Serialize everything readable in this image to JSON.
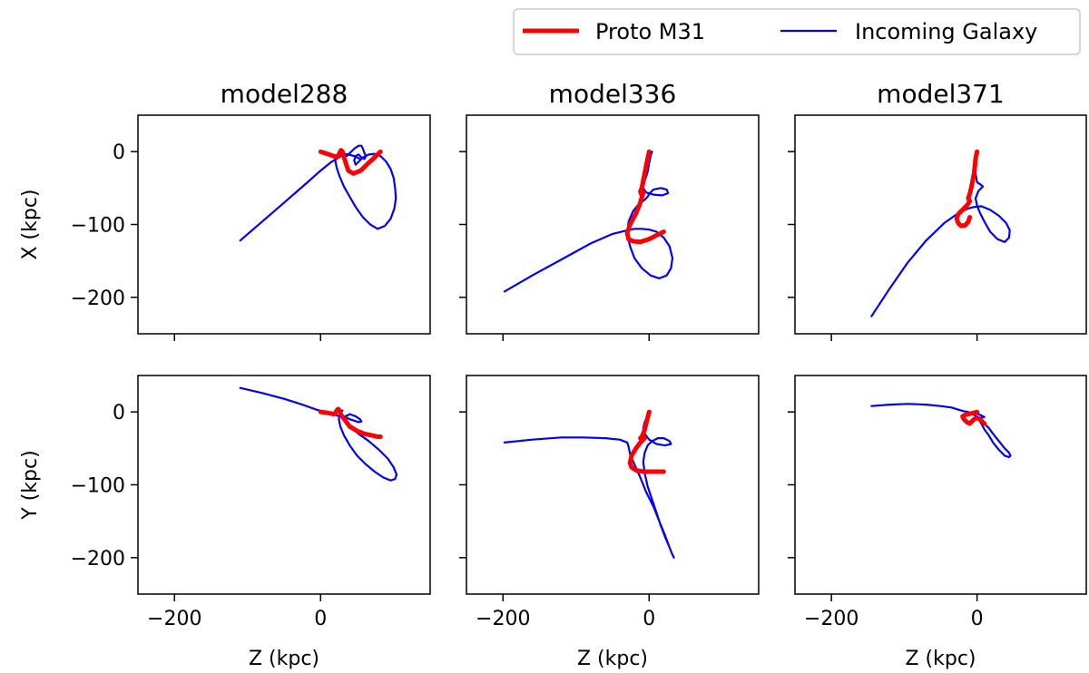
{
  "legend": {
    "entries": [
      {
        "label": "Proto M31",
        "color": "#ff0000"
      },
      {
        "label": "Incoming Galaxy",
        "color": "#0000ff"
      }
    ]
  },
  "chart_data": [
    {
      "type": "line",
      "title": "model288",
      "xlabel": "",
      "ylabel": "X (kpc)",
      "xlim": [
        -250,
        150
      ],
      "ylim": [
        -250,
        50
      ],
      "xticks": [
        -200,
        0
      ],
      "yticks": [
        0,
        -100,
        -200
      ],
      "series": [
        {
          "name": "Proto M31",
          "x": [
            0,
            12,
            20,
            24,
            26,
            28,
            30,
            34,
            38,
            45,
            55,
            65,
            72,
            78,
            82
          ],
          "y": [
            0,
            -4,
            -7,
            -6,
            -2,
            2,
            0,
            -14,
            -26,
            -30,
            -26,
            -16,
            -10,
            -4,
            0
          ]
        },
        {
          "name": "Incoming Galaxy",
          "x": [
            -110,
            -80,
            -50,
            -20,
            0,
            15,
            25,
            32,
            36,
            40,
            46,
            52,
            56,
            58,
            60,
            62,
            60,
            56,
            52,
            48,
            46,
            48,
            52,
            58,
            66,
            74,
            82,
            90,
            96,
            100,
            102,
            103,
            101,
            96,
            88,
            78,
            68,
            58,
            48,
            40,
            32,
            26,
            22,
            20,
            21,
            24,
            30,
            38,
            46,
            54
          ],
          "y": [
            -122,
            -96,
            -70,
            -44,
            -26,
            -14,
            -8,
            -4,
            -6,
            -2,
            4,
            8,
            8,
            4,
            -2,
            -6,
            -10,
            -8,
            -4,
            -6,
            -12,
            -18,
            -14,
            -8,
            -4,
            -3,
            -6,
            -14,
            -24,
            -36,
            -50,
            -64,
            -78,
            -92,
            -102,
            -106,
            -100,
            -90,
            -76,
            -62,
            -48,
            -34,
            -22,
            -12,
            -6,
            -3,
            -2,
            -4,
            -6,
            -10
          ]
        }
      ]
    },
    {
      "type": "line",
      "title": "model336",
      "xlabel": "",
      "ylabel": "",
      "xlim": [
        -250,
        150
      ],
      "ylim": [
        -250,
        50
      ],
      "xticks": [
        -200,
        0
      ],
      "yticks": [
        0,
        -100,
        -200
      ],
      "series": [
        {
          "name": "Proto M31",
          "x": [
            0,
            -2,
            -4,
            -6,
            -8,
            -10,
            -12,
            -10,
            -8,
            -12,
            -18,
            -26,
            -30,
            -28,
            -22,
            -12,
            0,
            12,
            20
          ],
          "y": [
            0,
            -10,
            -20,
            -30,
            -40,
            -50,
            -55,
            -60,
            -56,
            -70,
            -85,
            -100,
            -112,
            -120,
            -123,
            -124,
            -120,
            -114,
            -110
          ]
        },
        {
          "name": "Incoming Galaxy",
          "x": [
            -198,
            -160,
            -120,
            -80,
            -50,
            -30,
            -20,
            -10,
            0,
            10,
            20,
            28,
            32,
            30,
            24,
            14,
            2,
            -10,
            -20,
            -26,
            -30,
            -28,
            -22,
            -14,
            -6,
            -2,
            0,
            6,
            16,
            24,
            26,
            18,
            6,
            -4,
            -8,
            -6,
            -2,
            0,
            2,
            4
          ],
          "y": [
            -192,
            -170,
            -148,
            -126,
            -113,
            -108,
            -106,
            -106,
            -107,
            -110,
            -118,
            -130,
            -146,
            -160,
            -170,
            -174,
            -170,
            -160,
            -146,
            -130,
            -112,
            -96,
            -82,
            -72,
            -66,
            -62,
            -58,
            -52,
            -50,
            -52,
            -57,
            -60,
            -59,
            -56,
            -50,
            -40,
            -28,
            -16,
            -6,
            0
          ]
        }
      ]
    },
    {
      "type": "line",
      "title": "model371",
      "xlabel": "",
      "ylabel": "",
      "xlim": [
        -250,
        150
      ],
      "ylim": [
        -250,
        50
      ],
      "xticks": [
        -200,
        0
      ],
      "yticks": [
        0,
        -100,
        -200
      ],
      "series": [
        {
          "name": "Proto M31",
          "x": [
            0,
            -2,
            -3,
            -4,
            -6,
            -8,
            -10,
            -12,
            -10,
            -14,
            -20,
            -26,
            -28,
            -26,
            -22,
            -16,
            -12,
            -10
          ],
          "y": [
            0,
            -10,
            -20,
            -30,
            -40,
            -50,
            -58,
            -64,
            -68,
            -74,
            -80,
            -86,
            -92,
            -98,
            -102,
            -101,
            -96,
            -90
          ]
        },
        {
          "name": "Incoming Galaxy",
          "x": [
            -145,
            -120,
            -95,
            -70,
            -45,
            -25,
            -12,
            -4,
            6,
            18,
            30,
            40,
            45,
            44,
            38,
            28,
            18,
            10,
            4,
            0,
            -2,
            2,
            8,
            6,
            0,
            -2,
            -1,
            0
          ],
          "y": [
            -226,
            -188,
            -152,
            -122,
            -98,
            -84,
            -78,
            -76,
            -75,
            -80,
            -88,
            -98,
            -108,
            -118,
            -124,
            -120,
            -110,
            -96,
            -84,
            -74,
            -64,
            -54,
            -48,
            -46,
            -42,
            -30,
            -14,
            0
          ]
        }
      ]
    },
    {
      "type": "line",
      "title": "",
      "xlabel": "Z (kpc)",
      "ylabel": "Y (kpc)",
      "xlim": [
        -250,
        150
      ],
      "ylim": [
        -250,
        50
      ],
      "xticks": [
        -200,
        0
      ],
      "yticks": [
        0,
        -100,
        -200
      ],
      "series": [
        {
          "name": "Proto M31",
          "x": [
            0,
            8,
            14,
            18,
            20,
            22,
            24,
            26,
            28,
            34,
            40,
            50,
            60,
            70,
            78,
            82
          ],
          "y": [
            0,
            -1,
            -2,
            -3,
            -2,
            2,
            4,
            2,
            -4,
            -12,
            -20,
            -26,
            -30,
            -32,
            -34,
            -34
          ]
        },
        {
          "name": "Incoming Galaxy",
          "x": [
            -110,
            -80,
            -50,
            -25,
            -5,
            10,
            20,
            26,
            30,
            34,
            40,
            48,
            54,
            56,
            52,
            46,
            40,
            36,
            34,
            40,
            52,
            66,
            80,
            92,
            100,
            104,
            102,
            96,
            86,
            74,
            62,
            50,
            40,
            32,
            27,
            25,
            26,
            28,
            30,
            28
          ],
          "y": [
            33,
            26,
            18,
            10,
            3,
            -1,
            -4,
            -6,
            -7,
            -6,
            -3,
            -6,
            -10,
            -13,
            -14,
            -12,
            -10,
            -8,
            -12,
            -20,
            -30,
            -40,
            -52,
            -64,
            -76,
            -86,
            -92,
            -94,
            -90,
            -82,
            -72,
            -60,
            -46,
            -32,
            -20,
            -10,
            -4,
            0,
            2,
            0
          ]
        }
      ]
    },
    {
      "type": "line",
      "title": "",
      "xlabel": "Z (kpc)",
      "ylabel": "",
      "xlim": [
        -250,
        150
      ],
      "ylim": [
        -250,
        50
      ],
      "xticks": [
        -200,
        0
      ],
      "yticks": [
        0,
        -100,
        -200
      ],
      "series": [
        {
          "name": "Proto M31",
          "x": [
            0,
            -2,
            -4,
            -6,
            -8,
            -10,
            -12,
            -10,
            -6,
            -12,
            -18,
            -24,
            -26,
            -24,
            -18,
            -8,
            4,
            12,
            20
          ],
          "y": [
            0,
            -8,
            -16,
            -24,
            -30,
            -34,
            -36,
            -38,
            -36,
            -42,
            -50,
            -60,
            -70,
            -76,
            -80,
            -82,
            -82,
            -82,
            -82
          ]
        },
        {
          "name": "Incoming Galaxy",
          "x": [
            -198,
            -160,
            -120,
            -90,
            -60,
            -40,
            -30,
            -28,
            -26,
            -20,
            -12,
            -4,
            6,
            14,
            22,
            28,
            32,
            34,
            32,
            28,
            22,
            16,
            10,
            4,
            -2,
            -6,
            -8,
            -6,
            -2,
            4,
            12,
            20,
            28,
            30,
            22,
            10,
            0,
            -6,
            -8,
            -6,
            -2,
            0,
            2
          ],
          "y": [
            -42,
            -38,
            -35,
            -35,
            -36,
            -38,
            -42,
            -48,
            -58,
            -72,
            -90,
            -110,
            -130,
            -150,
            -170,
            -186,
            -196,
            -200,
            -196,
            -186,
            -172,
            -156,
            -138,
            -120,
            -102,
            -84,
            -68,
            -56,
            -46,
            -40,
            -36,
            -36,
            -40,
            -44,
            -46,
            -44,
            -38,
            -30,
            -22,
            -14,
            -6,
            -2,
            0
          ]
        }
      ]
    },
    {
      "type": "line",
      "title": "",
      "xlabel": "Z (kpc)",
      "ylabel": "",
      "xlim": [
        -250,
        150
      ],
      "ylim": [
        -250,
        50
      ],
      "xticks": [
        -200,
        0
      ],
      "yticks": [
        0,
        -100,
        -200
      ],
      "series": [
        {
          "name": "Proto M31",
          "x": [
            0,
            -4,
            -8,
            -12,
            -16,
            -20,
            -18,
            -14,
            -10,
            -8,
            -4,
            0,
            4,
            8,
            10
          ],
          "y": [
            0,
            -1,
            -2,
            -3,
            -4,
            -6,
            -10,
            -14,
            -16,
            -14,
            -10,
            -8,
            -10,
            -14,
            -16
          ]
        },
        {
          "name": "Incoming Galaxy",
          "x": [
            -145,
            -120,
            -95,
            -70,
            -50,
            -35,
            -25,
            -18,
            -12,
            -8,
            -4,
            0,
            4,
            10,
            16,
            22,
            30,
            38,
            44,
            46,
            44,
            38,
            30,
            22,
            16,
            10,
            6,
            2,
            -2,
            -4,
            -2,
            2,
            6,
            10,
            8,
            4,
            0,
            -1
          ],
          "y": [
            8,
            10,
            11,
            10,
            8,
            6,
            3,
            1,
            0,
            -2,
            -4,
            -6,
            -10,
            -16,
            -22,
            -30,
            -40,
            -50,
            -56,
            -60,
            -62,
            -60,
            -52,
            -42,
            -32,
            -24,
            -16,
            -10,
            -6,
            -4,
            -6,
            -8,
            -8,
            -7,
            -6,
            -4,
            -2,
            0
          ]
        }
      ]
    }
  ]
}
